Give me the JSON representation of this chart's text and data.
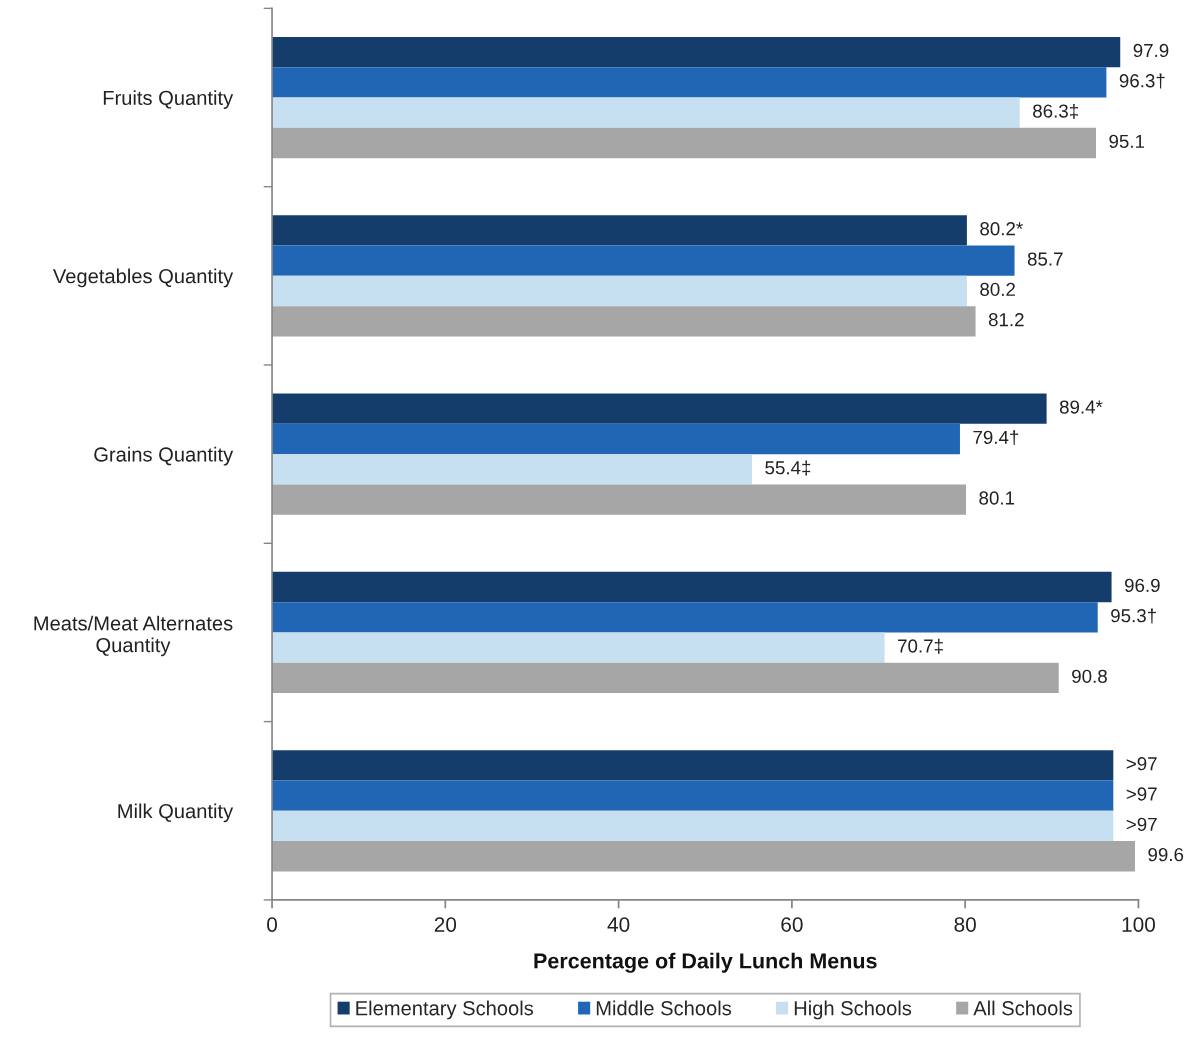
{
  "chart_data": {
    "type": "bar",
    "orientation": "horizontal",
    "categories": [
      "Fruits Quantity",
      "Vegetables Quantity",
      "Grains Quantity",
      "Meats/Meat Alternates\nQuantity",
      "Milk Quantity"
    ],
    "series": [
      {
        "name": "Elementary Schools",
        "color": "#153d6b",
        "values": [
          97.9,
          80.2,
          89.4,
          96.9,
          97.1
        ],
        "value_labels": [
          "97.9",
          "80.2*",
          "89.4*",
          "96.9",
          ">97"
        ]
      },
      {
        "name": "Middle Schools",
        "color": "#2066b5",
        "values": [
          96.3,
          85.7,
          79.4,
          95.3,
          97.1
        ],
        "value_labels": [
          "96.3†",
          "85.7",
          "79.4†",
          "95.3†",
          ">97"
        ]
      },
      {
        "name": "High Schools",
        "color": "#c6dff1",
        "values": [
          86.3,
          80.2,
          55.4,
          70.7,
          97.1
        ],
        "value_labels": [
          "86.3‡",
          "80.2",
          "55.4‡",
          "70.7‡",
          ">97"
        ]
      },
      {
        "name": "All Schools",
        "color": "#a6a6a6",
        "values": [
          95.1,
          81.2,
          80.1,
          90.8,
          99.6
        ],
        "value_labels": [
          "95.1",
          "81.2",
          "80.1",
          "90.8",
          "99.6"
        ]
      }
    ],
    "xlabel": "Percentage of Daily Lunch Menus",
    "xlim": [
      0,
      100
    ],
    "xticks": [
      0,
      20,
      40,
      60,
      80,
      100
    ],
    "grid": false,
    "legend": "bottom"
  }
}
